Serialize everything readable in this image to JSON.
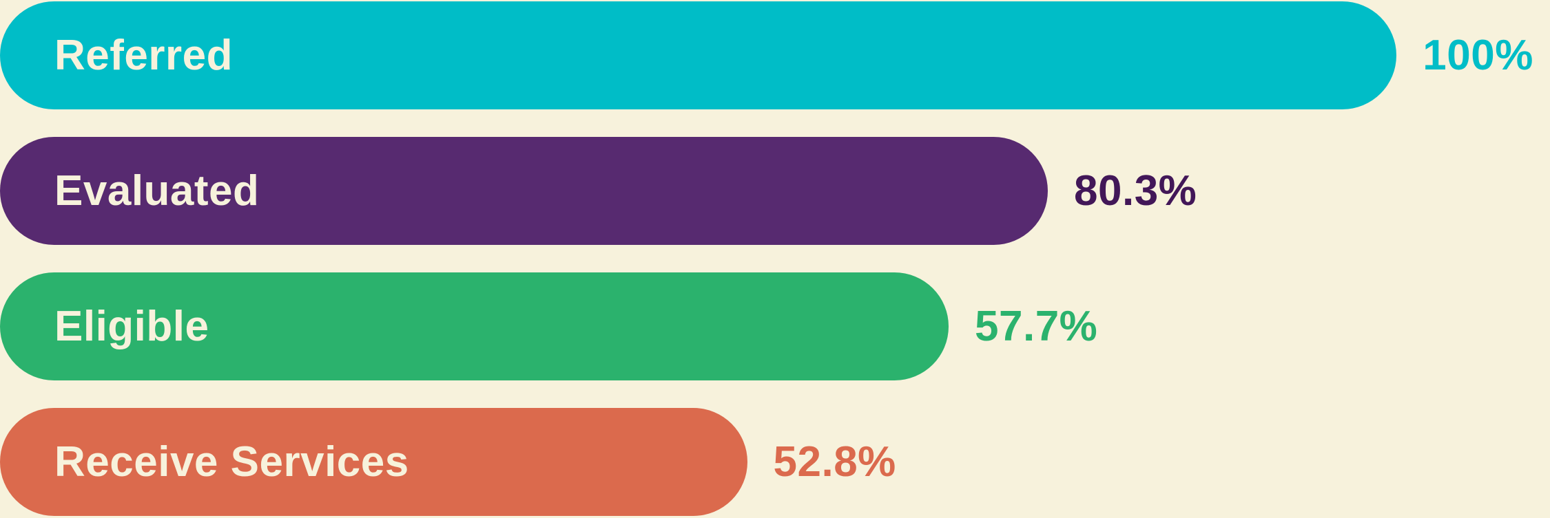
{
  "chart_data": {
    "type": "bar",
    "orientation": "horizontal",
    "style": "funnel-pill-bars",
    "title": "",
    "categories": [
      "Referred",
      "Evaluated",
      "Eligible",
      "Receive Services"
    ],
    "values": [
      100,
      80.3,
      57.7,
      52.8
    ],
    "value_labels": [
      "100%",
      "80.3%",
      "57.7%",
      "52.8%"
    ],
    "grid": false,
    "legend": false,
    "background_color": "#F7F2DC",
    "bar_text_color": "#F7F2DC",
    "bar_width_pct_of_canvas": [
      90.1,
      67.6,
      61.2,
      48.2
    ]
  },
  "bars": [
    {
      "label": "Referred",
      "value_label": "100%",
      "color": "#00BDC7",
      "value_color": "#00BDC7",
      "width_pct": 90.1
    },
    {
      "label": "Evaluated",
      "value_label": "80.3%",
      "color": "#572A70",
      "value_color": "#421758",
      "width_pct": 67.6
    },
    {
      "label": "Eligible",
      "value_label": "57.7%",
      "color": "#2BB26D",
      "value_color": "#2BB26D",
      "width_pct": 61.2
    },
    {
      "label": "Receive Services",
      "value_label": "52.8%",
      "color": "#DB6A4D",
      "value_color": "#DB6A4D",
      "width_pct": 48.2
    }
  ]
}
